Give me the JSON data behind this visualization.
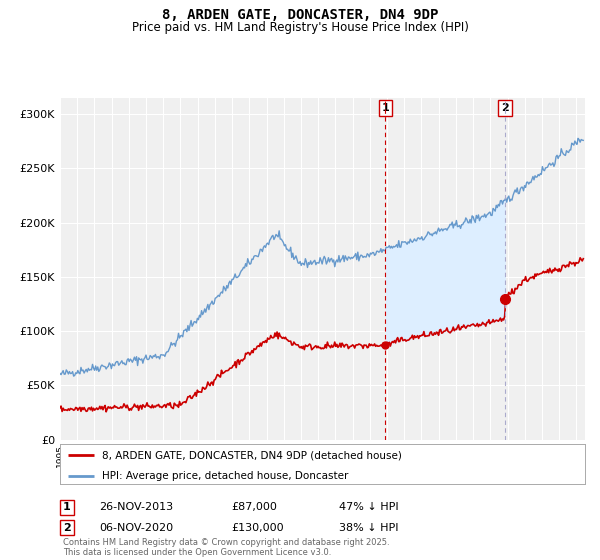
{
  "title": "8, ARDEN GATE, DONCASTER, DN4 9DP",
  "subtitle": "Price paid vs. HM Land Registry's House Price Index (HPI)",
  "ylabel_ticks": [
    "£0",
    "£50K",
    "£100K",
    "£150K",
    "£200K",
    "£250K",
    "£300K"
  ],
  "ytick_vals": [
    0,
    50000,
    100000,
    150000,
    200000,
    250000,
    300000
  ],
  "ylim": [
    0,
    315000
  ],
  "xlim_start": 1995.0,
  "xlim_end": 2025.5,
  "transaction1": {
    "date": "26-NOV-2013",
    "x": 2013.9,
    "price": 87000,
    "label": "1",
    "pct": "47% ↓ HPI"
  },
  "transaction2": {
    "date": "06-NOV-2020",
    "x": 2020.85,
    "price": 130000,
    "label": "2",
    "pct": "38% ↓ HPI"
  },
  "legend_line1": "8, ARDEN GATE, DONCASTER, DN4 9DP (detached house)",
  "legend_line2": "HPI: Average price, detached house, Doncaster",
  "footer": "Contains HM Land Registry data © Crown copyright and database right 2025.\nThis data is licensed under the Open Government Licence v3.0.",
  "line_color_red": "#cc0000",
  "line_color_blue": "#6699cc",
  "shade_color": "#ddeeff",
  "vline1_color": "#cc0000",
  "vline2_color": "#aaaacc",
  "background_plot": "#f0f0f0",
  "background_fig": "#ffffff",
  "grid_color": "#ffffff"
}
